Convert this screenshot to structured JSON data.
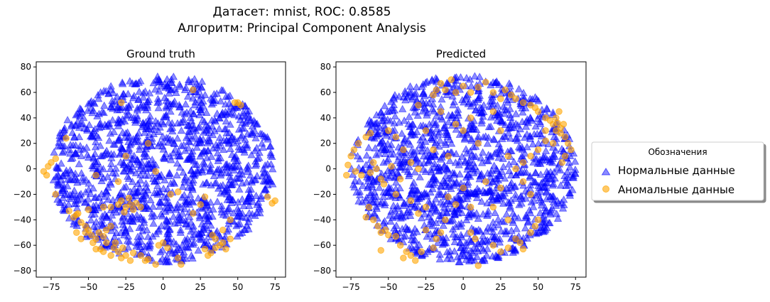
{
  "figure": {
    "suptitle_line1": "Датасет: mnist, ROC: 0.8585",
    "suptitle_line2": "Алгоритм: Principal Component Analysis"
  },
  "colors": {
    "normal": "#0000ff",
    "anomaly": "#ffa500"
  },
  "legend": {
    "title": "Обозначения",
    "placement": "right, outside plots",
    "items": [
      {
        "label": "Нормальные данные",
        "marker": "triangle",
        "color": "#0000ff"
      },
      {
        "label": "Аномальные данные",
        "marker": "circle",
        "color": "#ffa500"
      }
    ]
  },
  "chart_data": [
    {
      "type": "scatter",
      "title": "Ground truth",
      "xlim": [
        -85,
        82
      ],
      "ylim": [
        -85,
        84
      ],
      "xticks": [
        -75,
        -50,
        -25,
        0,
        25,
        50,
        75
      ],
      "yticks": [
        -80,
        -60,
        -40,
        -20,
        0,
        20,
        40,
        60,
        80
      ],
      "grid": false,
      "series": [
        {
          "name": "Нормальные данные",
          "marker": "triangle",
          "color": "#0000ff",
          "distribution": "disc centered near (0, 0), radius about 75"
        },
        {
          "name": "Аномальные данные",
          "marker": "circle",
          "color": "#ffa500",
          "points": [
            [
              -78,
              -5
            ],
            [
              -77,
              2
            ],
            [
              -75,
              5
            ],
            [
              -72,
              8
            ],
            [
              -80,
              -2
            ],
            [
              -65,
              24
            ],
            [
              -72,
              -20
            ],
            [
              -63,
              -33
            ],
            [
              -60,
              -38
            ],
            [
              -58,
              -36
            ],
            [
              -57,
              -35
            ],
            [
              -55,
              -42
            ],
            [
              -52,
              -45
            ],
            [
              -50,
              -48
            ],
            [
              -48,
              -52
            ],
            [
              -45,
              -55
            ],
            [
              -43,
              -50
            ],
            [
              -40,
              -53
            ],
            [
              -38,
              -58
            ],
            [
              -42,
              -63
            ],
            [
              -40,
              -65
            ],
            [
              -35,
              -68
            ],
            [
              -33,
              -62
            ],
            [
              -30,
              -65
            ],
            [
              -28,
              -70
            ],
            [
              -25,
              -68
            ],
            [
              -22,
              -72
            ],
            [
              -20,
              -66
            ],
            [
              -27,
              -62
            ],
            [
              -32,
              -58
            ],
            [
              -38,
              -48
            ],
            [
              -35,
              -45
            ],
            [
              -45,
              -63
            ],
            [
              -28,
              -25
            ],
            [
              -25,
              -30
            ],
            [
              -22,
              -28
            ],
            [
              -20,
              -32
            ],
            [
              -18,
              -27
            ],
            [
              -15,
              -30
            ],
            [
              -26,
              -34
            ],
            [
              -30,
              -28
            ],
            [
              -23,
              -23
            ],
            [
              -35,
              -30
            ],
            [
              -10,
              -71
            ],
            [
              -12,
              -72
            ],
            [
              -15,
              -68
            ],
            [
              -5,
              -75
            ],
            [
              -3,
              -60
            ],
            [
              0,
              -58
            ],
            [
              3,
              -62
            ],
            [
              10,
              -70
            ],
            [
              12,
              -75
            ],
            [
              20,
              -35
            ],
            [
              25,
              -28
            ],
            [
              28,
              -22
            ],
            [
              35,
              -55
            ],
            [
              38,
              -60
            ],
            [
              40,
              -58
            ],
            [
              42,
              -63
            ],
            [
              35,
              -62
            ],
            [
              32,
              -66
            ],
            [
              30,
              -68
            ],
            [
              28,
              -63
            ],
            [
              33,
              -52
            ],
            [
              45,
              -55
            ],
            [
              40,
              -48
            ],
            [
              50,
              52
            ],
            [
              52,
              50
            ],
            [
              48,
              52
            ],
            [
              20,
              62
            ],
            [
              10,
              -18
            ],
            [
              5,
              -20
            ],
            [
              -5,
              -2
            ],
            [
              -10,
              20
            ],
            [
              -28,
              52
            ],
            [
              -30,
              -10
            ],
            [
              -45,
              -5
            ],
            [
              -40,
              -30
            ],
            [
              -50,
              -32
            ],
            [
              -25,
              10
            ],
            [
              75,
              -25
            ],
            [
              73,
              -27
            ],
            [
              70,
              -22
            ],
            [
              -47,
              -58
            ],
            [
              -58,
              -50
            ],
            [
              -55,
              -55
            ],
            [
              -52,
              -50
            ],
            [
              45,
              -40
            ]
          ]
        }
      ]
    },
    {
      "type": "scatter",
      "title": "Predicted",
      "xlim": [
        -85,
        82
      ],
      "ylim": [
        -85,
        84
      ],
      "xticks": [
        -75,
        -50,
        -25,
        0,
        25,
        50,
        75
      ],
      "yticks": [
        -80,
        -60,
        -40,
        -20,
        0,
        20,
        40,
        60,
        80
      ],
      "grid": false,
      "series": [
        {
          "name": "Нормальные данные",
          "marker": "triangle",
          "color": "#0000ff",
          "distribution": "disc centered near (0, 0), radius about 75"
        },
        {
          "name": "Аномальные данные",
          "marker": "circle",
          "color": "#ffa500",
          "points": [
            [
              -78,
              -5
            ],
            [
              -77,
              3
            ],
            [
              -75,
              10
            ],
            [
              -73,
              15
            ],
            [
              -70,
              20
            ],
            [
              -72,
              -2
            ],
            [
              -68,
              -5
            ],
            [
              -62,
              -3
            ],
            [
              -60,
              5
            ],
            [
              -58,
              0
            ],
            [
              -55,
              -8
            ],
            [
              -53,
              -12
            ],
            [
              -63,
              -30
            ],
            [
              -65,
              -38
            ],
            [
              -60,
              -40
            ],
            [
              -57,
              -45
            ],
            [
              -55,
              -50
            ],
            [
              -52,
              -48
            ],
            [
              -50,
              -52
            ],
            [
              -55,
              -64
            ],
            [
              -45,
              -53
            ],
            [
              -42,
              -60
            ],
            [
              -38,
              -65
            ],
            [
              -40,
              -70
            ],
            [
              -35,
              -68
            ],
            [
              -32,
              -72
            ],
            [
              -25,
              -48
            ],
            [
              -28,
              -65
            ],
            [
              -20,
              -62
            ],
            [
              -18,
              -55
            ],
            [
              -15,
              -50
            ],
            [
              -12,
              -40
            ],
            [
              -30,
              -35
            ],
            [
              -25,
              -30
            ],
            [
              -10,
              -22
            ],
            [
              -5,
              -28
            ],
            [
              0,
              -15
            ],
            [
              5,
              -30
            ],
            [
              5,
              -50
            ],
            [
              8,
              -55
            ],
            [
              10,
              -76
            ],
            [
              20,
              -60
            ],
            [
              25,
              -65
            ],
            [
              30,
              -62
            ],
            [
              35,
              -55
            ],
            [
              38,
              -58
            ],
            [
              40,
              -63
            ],
            [
              45,
              -50
            ],
            [
              48,
              -45
            ],
            [
              50,
              -40
            ],
            [
              30,
              -40
            ],
            [
              20,
              -30
            ],
            [
              -18,
              62
            ],
            [
              -20,
              58
            ],
            [
              -15,
              67
            ],
            [
              -12,
              62
            ],
            [
              -8,
              70
            ],
            [
              -5,
              60
            ],
            [
              0,
              65
            ],
            [
              5,
              60
            ],
            [
              10,
              64
            ],
            [
              15,
              68
            ],
            [
              20,
              60
            ],
            [
              25,
              55
            ],
            [
              28,
              62
            ],
            [
              32,
              58
            ],
            [
              35,
              55
            ],
            [
              40,
              52
            ],
            [
              45,
              50
            ],
            [
              48,
              48
            ],
            [
              50,
              45
            ],
            [
              55,
              40
            ],
            [
              60,
              35
            ],
            [
              62,
              30
            ],
            [
              65,
              28
            ],
            [
              68,
              25
            ],
            [
              70,
              20
            ],
            [
              72,
              15
            ],
            [
              68,
              10
            ],
            [
              66,
              5
            ],
            [
              64,
              45
            ],
            [
              62,
              40
            ],
            [
              63,
              36
            ],
            [
              65,
              32
            ],
            [
              67,
              35
            ],
            [
              58,
              38
            ],
            [
              55,
              30
            ],
            [
              50,
              15
            ],
            [
              45,
              10
            ],
            [
              40,
              5
            ],
            [
              55,
              22
            ],
            [
              60,
              20
            ],
            [
              -50,
              30
            ],
            [
              -45,
              25
            ],
            [
              -40,
              15
            ],
            [
              -35,
              5
            ],
            [
              -30,
              0
            ],
            [
              -45,
              -20
            ],
            [
              -35,
              -25
            ],
            [
              -5,
              35
            ],
            [
              0,
              30
            ],
            [
              5,
              40
            ],
            [
              10,
              20
            ],
            [
              -10,
              10
            ],
            [
              -20,
              15
            ],
            [
              20,
              45
            ],
            [
              25,
              30
            ],
            [
              30,
              10
            ],
            [
              35,
              0
            ],
            [
              40,
              -10
            ],
            [
              45,
              -20
            ],
            [
              -62,
              28
            ],
            [
              -65,
              25
            ],
            [
              -48,
              2
            ],
            [
              -42,
              -8
            ],
            [
              -30,
              50
            ],
            [
              -25,
              30
            ],
            [
              -15,
              45
            ],
            [
              15,
              -10
            ],
            [
              25,
              -15
            ]
          ]
        }
      ]
    }
  ]
}
